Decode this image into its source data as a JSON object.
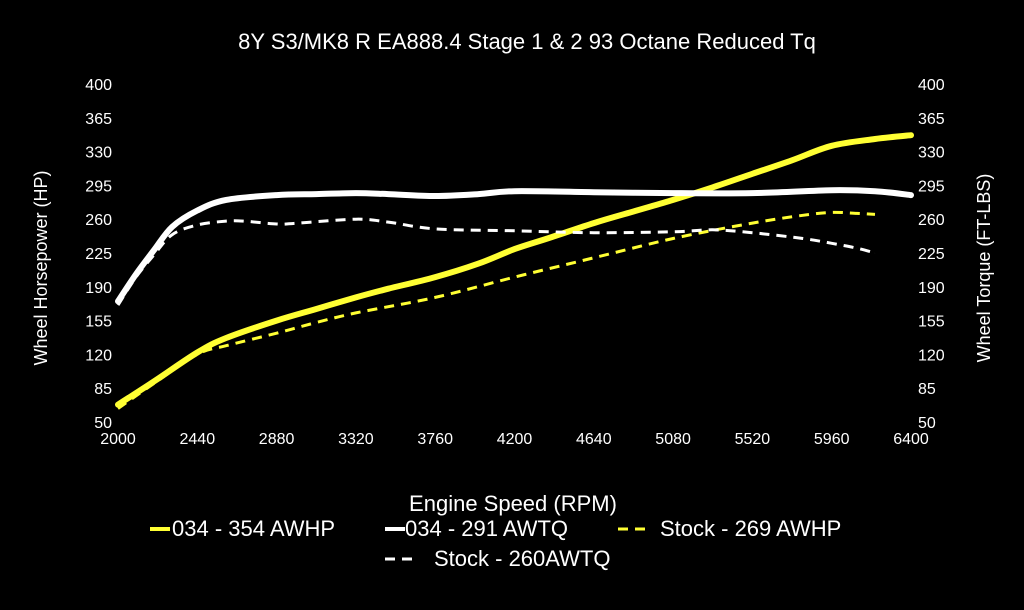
{
  "chart_data": {
    "type": "line",
    "title": "8Y S3/MK8 R EA888.4 Stage 1 & 2 93 Octane Reduced Tq",
    "xlabel": "Engine Speed (RPM)",
    "ylabel": "Wheel Horsepower (HP)",
    "y2label": "Wheel Torque (FT-LBS)",
    "xlim": [
      2000,
      6400
    ],
    "ylim": [
      50,
      400
    ],
    "xticks": [
      "2000",
      "2440",
      "2880",
      "3320",
      "3760",
      "4200",
      "4640",
      "5080",
      "5520",
      "5960",
      "6400"
    ],
    "yticks": [
      "50",
      "85",
      "120",
      "155",
      "190",
      "225",
      "260",
      "295",
      "330",
      "365",
      "400"
    ],
    "grid": false,
    "legend_position": "bottom",
    "series": [
      {
        "name": "034 - 354 AWHP",
        "color": "#ffff33",
        "style": "solid",
        "x": [
          2000,
          2200,
          2440,
          2600,
          2880,
          3100,
          3320,
          3500,
          3760,
          4000,
          4200,
          4400,
          4640,
          4860,
          5080,
          5300,
          5520,
          5740,
          5960,
          6200,
          6400
        ],
        "y": [
          68,
          92,
          122,
          137,
          155,
          167,
          179,
          188,
          200,
          214,
          229,
          241,
          256,
          268,
          280,
          293,
          307,
          321,
          336,
          343,
          347
        ]
      },
      {
        "name": "034 - 291 AWTQ",
        "color": "#ffffff",
        "style": "solid",
        "x": [
          2000,
          2100,
          2200,
          2300,
          2440,
          2600,
          2880,
          3100,
          3320,
          3500,
          3760,
          4000,
          4200,
          4640,
          5080,
          5520,
          5960,
          6200,
          6400
        ],
        "y": [
          175,
          203,
          228,
          252,
          269,
          280,
          285,
          286,
          287,
          286,
          284,
          286,
          289,
          288,
          287,
          287,
          290,
          289,
          285
        ]
      },
      {
        "name": "Stock - 269 AWHP",
        "color": "#ffff33",
        "style": "dashed",
        "x": [
          2000,
          2200,
          2440,
          2600,
          2880,
          3100,
          3320,
          3760,
          4200,
          4640,
          5080,
          5520,
          5800,
          5960,
          6100,
          6200
        ],
        "y": [
          64,
          90,
          120,
          129,
          142,
          153,
          163,
          179,
          200,
          220,
          240,
          256,
          264,
          267,
          266,
          265
        ]
      },
      {
        "name": "Stock - 260AWTQ",
        "color": "#ffffff",
        "style": "dashed",
        "x": [
          2000,
          2100,
          2200,
          2300,
          2440,
          2600,
          2700,
          2880,
          3000,
          3320,
          3500,
          3760,
          4200,
          4640,
          5080,
          5300,
          5520,
          5800,
          5960,
          6100,
          6200
        ],
        "y": [
          171,
          200,
          223,
          244,
          254,
          258,
          258,
          255,
          256,
          260,
          257,
          250,
          248,
          246,
          247,
          249,
          246,
          240,
          235,
          230,
          225
        ]
      }
    ]
  }
}
